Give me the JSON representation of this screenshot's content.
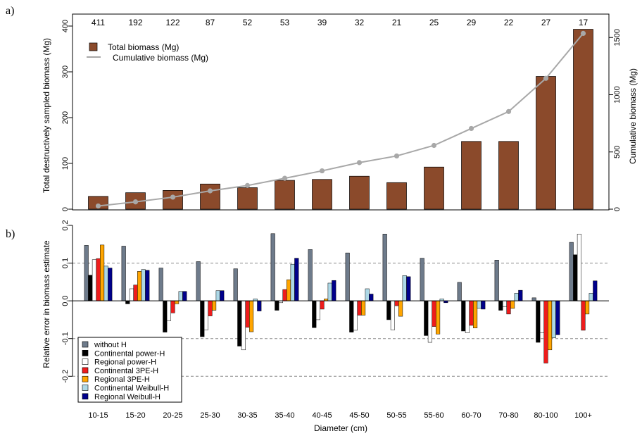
{
  "chart_data": [
    {
      "panel": "a)",
      "type": "bar",
      "categories": [
        "10-15",
        "15-20",
        "20-25",
        "25-30",
        "30-35",
        "35-40",
        "40-45",
        "45-50",
        "50-55",
        "55-60",
        "60-70",
        "70-80",
        "80-100",
        "100+"
      ],
      "counts": [
        "411",
        "192",
        "122",
        "87",
        "52",
        "53",
        "39",
        "32",
        "21",
        "25",
        "29",
        "22",
        "27",
        "17"
      ],
      "series": [
        {
          "name": "Total biomass (Mg)",
          "axis": "left",
          "kind": "bar",
          "color": "#8B4A2B",
          "values": [
            28,
            36,
            41,
            55,
            47,
            63,
            65,
            72,
            58,
            92,
            148,
            148,
            290,
            393
          ]
        },
        {
          "name": "Cumulative biomass (Mg)",
          "axis": "right",
          "kind": "line",
          "color": "#A8A8A8",
          "values": [
            28,
            64,
            105,
            160,
            207,
            270,
            335,
            407,
            465,
            557,
            705,
            853,
            1143,
            1536
          ]
        }
      ],
      "ylabel": "Total destructively sampled biomass (Mg)",
      "ylabel_right": "Cumulative biomass (Mg)",
      "ylim": [
        0,
        400
      ],
      "ylim_right": [
        0,
        1600
      ],
      "yticks": [
        "0",
        "100",
        "200",
        "300",
        "400"
      ],
      "yticks_right": [
        "0",
        "500",
        "1000",
        "1500"
      ],
      "legend": "top-left"
    },
    {
      "panel": "b)",
      "type": "bar",
      "categories": [
        "10-15",
        "15-20",
        "20-25",
        "25-30",
        "30-35",
        "35-40",
        "40-45",
        "45-50",
        "50-55",
        "55-60",
        "60-70",
        "70-80",
        "80-100",
        "100+"
      ],
      "series": [
        {
          "name": "without H",
          "color": "#6E7B8B",
          "values": [
            0.147,
            0.145,
            0.087,
            0.104,
            0.085,
            0.178,
            0.136,
            0.127,
            0.177,
            0.113,
            0.049,
            0.108,
            0.008,
            0.155
          ]
        },
        {
          "name": "Continental power-H",
          "color": "#000000",
          "values": [
            0.068,
            -0.008,
            -0.083,
            -0.095,
            -0.12,
            -0.025,
            -0.071,
            -0.083,
            -0.05,
            -0.092,
            -0.08,
            -0.025,
            -0.11,
            0.122
          ]
        },
        {
          "name": "Regional power-H",
          "color": "#FFFFFF",
          "values": [
            0.109,
            0.032,
            -0.053,
            -0.077,
            -0.13,
            -0.005,
            -0.05,
            -0.078,
            -0.077,
            -0.11,
            -0.085,
            -0.015,
            -0.085,
            0.177
          ]
        },
        {
          "name": "Continental 3PE-H",
          "color": "#EE1C1C",
          "values": [
            0.112,
            0.042,
            -0.032,
            -0.04,
            -0.07,
            0.03,
            -0.022,
            -0.038,
            -0.013,
            -0.068,
            -0.065,
            -0.035,
            -0.165,
            -0.078
          ]
        },
        {
          "name": "Regional 3PE-H",
          "color": "#FFA500",
          "values": [
            0.148,
            0.078,
            -0.008,
            -0.025,
            -0.082,
            0.056,
            0.005,
            -0.038,
            -0.041,
            -0.088,
            -0.072,
            -0.02,
            -0.13,
            -0.035
          ]
        },
        {
          "name": "Continental Weibull-H",
          "color": "#ADD8E6",
          "values": [
            0.092,
            0.083,
            0.025,
            0.027,
            0.005,
            0.097,
            0.047,
            0.032,
            0.067,
            0.005,
            -0.02,
            0.02,
            -0.098,
            0.02
          ]
        },
        {
          "name": "Regional Weibull-H",
          "color": "#00008B",
          "values": [
            0.087,
            0.081,
            0.025,
            0.027,
            -0.027,
            0.113,
            0.054,
            0.018,
            0.064,
            -0.005,
            -0.022,
            0.028,
            -0.09,
            0.053
          ]
        }
      ],
      "xlabel": "Diameter (cm)",
      "ylabel": "Relative error in biomass estimate",
      "ylim": [
        -0.22,
        0.2
      ],
      "yticks": [
        "-0.2",
        "-0.1",
        "0.0",
        "0.1",
        "0.2"
      ],
      "reference_lines": [
        0.1,
        -0.1,
        -0.2
      ],
      "legend": "bottom-left"
    }
  ]
}
